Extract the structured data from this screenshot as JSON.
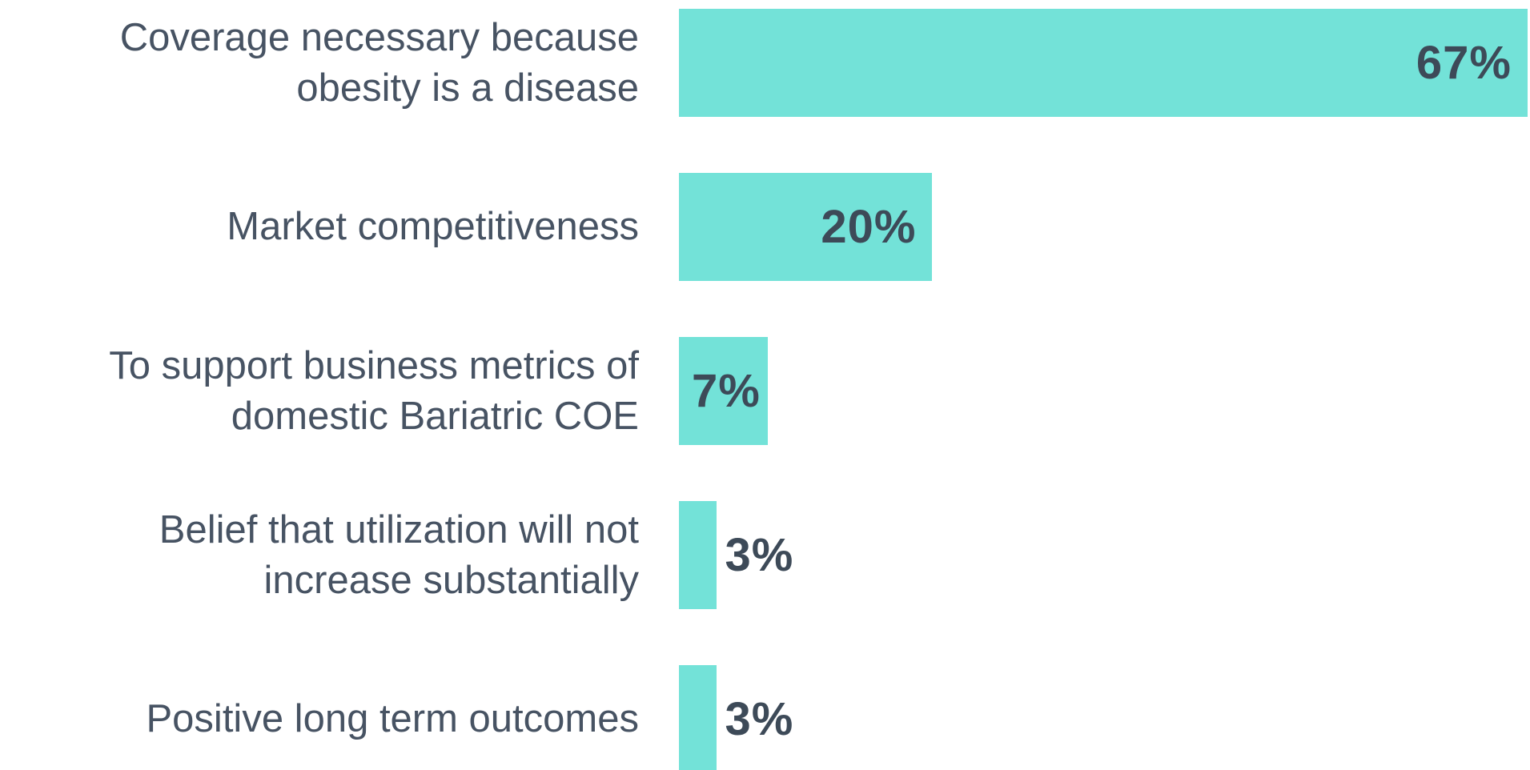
{
  "chart_data": {
    "type": "bar",
    "orientation": "horizontal",
    "categories": [
      "Coverage necessary because obesity is a disease",
      "Market competitiveness",
      "To support business metrics of domestic Bariatric COE",
      "Belief that utilization will not increase substantially",
      "Positive long term outcomes"
    ],
    "values": [
      67,
      20,
      7,
      3,
      3
    ],
    "value_labels": [
      "67%",
      "20%",
      "7%",
      "3%",
      "3%"
    ],
    "color": "#73e2d8"
  }
}
